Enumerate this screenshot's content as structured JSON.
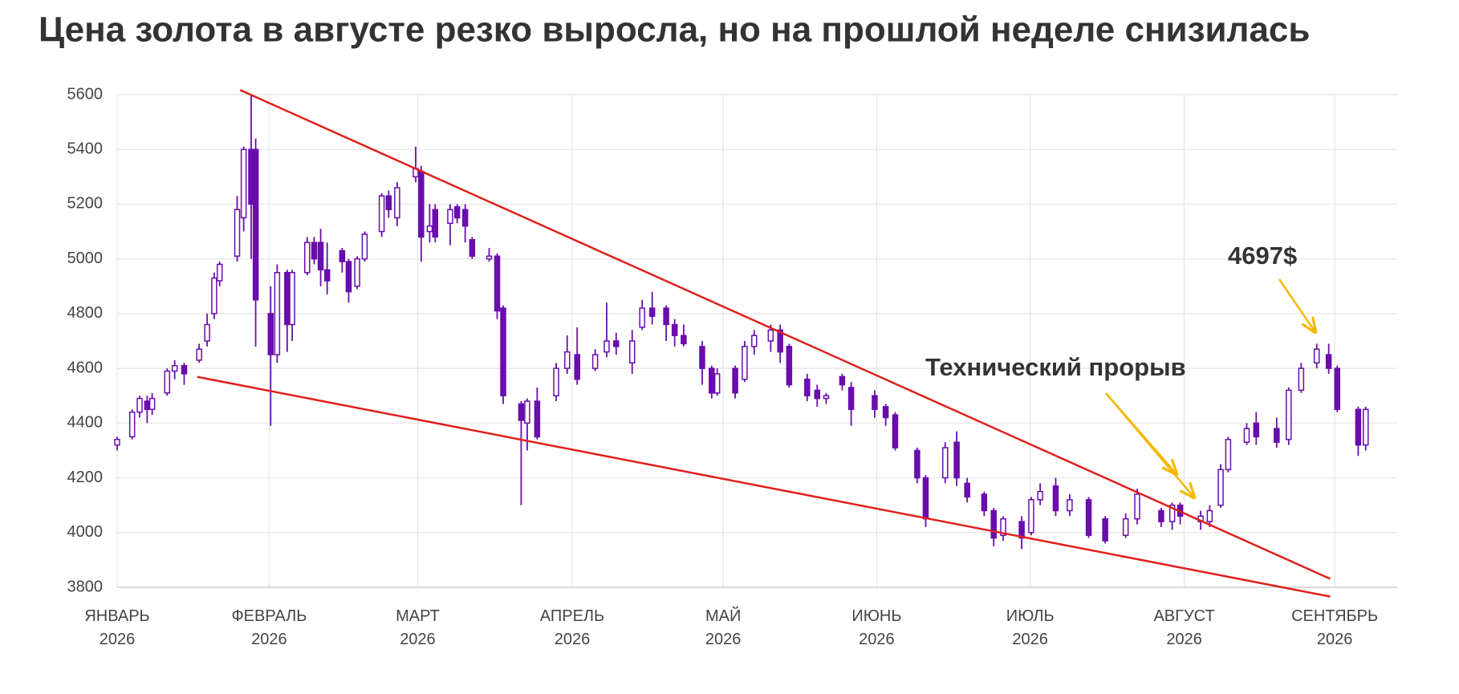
{
  "chart_data": {
    "type": "candlestick",
    "title": "Цена золота в августе резко выросла, но на прошлой неделе снизилась",
    "color": "#6a0dad",
    "grid": true,
    "xlim": [
      0,
      256
    ],
    "xticks": [
      {
        "value": 0,
        "label": "ЯНВАРЬ 2026"
      },
      {
        "value": 30.4,
        "label": "ФЕВРАЛЬ 2026"
      },
      {
        "value": 60.1,
        "label": "МАРТ 2026"
      },
      {
        "value": 91,
        "label": "АПРЕЛЬ 2026"
      },
      {
        "value": 121.2,
        "label": "МАЙ 2026"
      },
      {
        "value": 151.9,
        "label": "ИЮНЬ 2026"
      },
      {
        "value": 182.6,
        "label": "ИЮЛЬ 2026"
      },
      {
        "value": 213.4,
        "label": "АВГУСТ 2026"
      },
      {
        "value": 243.5,
        "label": "СЕНТЯБРЬ 2026"
      }
    ],
    "ylim": [
      3800,
      5600
    ],
    "yticks": [
      3800,
      4000,
      4200,
      4400,
      4600,
      4800,
      5000,
      5200,
      5400,
      5600
    ],
    "x": [
      0,
      3,
      4.5,
      6,
      7,
      10,
      11.5,
      13.4,
      16.4,
      18,
      19.4,
      20.5,
      24,
      25.3,
      26.8,
      27.7,
      30.7,
      32,
      34,
      35,
      38,
      39.4,
      40.7,
      42,
      45,
      46.3,
      48,
      49.5,
      52.9,
      54.3,
      56,
      59.7,
      60.8,
      62.5,
      63.6,
      66.6,
      68,
      69.6,
      71,
      74.4,
      76,
      77.2,
      80.8,
      82,
      84,
      87.8,
      90,
      92,
      95.6,
      97.9,
      99.8,
      103,
      105,
      107,
      109.8,
      111.5,
      113.3,
      117,
      118.9,
      120,
      123.6,
      125.5,
      127.4,
      130.7,
      132.6,
      134.4,
      138,
      140,
      141.8,
      145,
      146.8,
      151.5,
      153.7,
      155.6,
      160,
      161.7,
      165.6,
      167.9,
      170,
      173.4,
      175.3,
      177.2,
      180.9,
      182.8,
      184.6,
      187.7,
      190.5,
      194.3,
      197.6,
      201.7,
      204,
      208.8,
      211,
      212.6,
      216.7,
      218.5,
      220.7,
      222.2,
      225.9,
      227.8,
      231.9,
      234.3,
      236.8,
      239.9,
      242.3,
      244,
      248.2,
      249.7
    ],
    "open": [
      4320,
      4350,
      4440,
      4480,
      4450,
      4510,
      4590,
      4610,
      4630,
      4700,
      4800,
      4920,
      5010,
      5150,
      5400,
      5400,
      4800,
      4650,
      4950,
      4760,
      4950,
      5060,
      5060,
      4960,
      5030,
      4990,
      4900,
      5000,
      5100,
      5230,
      5150,
      5300,
      5320,
      5100,
      5180,
      5130,
      5190,
      5180,
      5070,
      5000,
      5010,
      4820,
      4470,
      4400,
      4480,
      4500,
      4600,
      4650,
      4600,
      4660,
      4700,
      4620,
      4750,
      4820,
      4820,
      4760,
      4720,
      4680,
      4600,
      4510,
      4600,
      4560,
      4680,
      4700,
      4740,
      4680,
      4560,
      4520,
      4490,
      4570,
      4530,
      4500,
      4460,
      4430,
      4300,
      4200,
      4200,
      4330,
      4180,
      4140,
      4080,
      3990,
      4040,
      4000,
      4120,
      4170,
      4080,
      4120,
      4050,
      3990,
      4050,
      4080,
      4040,
      4100,
      4040,
      4040,
      4100,
      4230,
      4330,
      4400,
      4380,
      4340,
      4520,
      4620,
      4650,
      4600,
      4450,
      4320
    ],
    "high": [
      4350,
      4450,
      4500,
      4500,
      4510,
      4600,
      4630,
      4620,
      4690,
      4800,
      4950,
      4990,
      5230,
      5410,
      5600,
      5440,
      4900,
      4980,
      4960,
      4960,
      5080,
      5080,
      5110,
      5060,
      5040,
      5000,
      5010,
      5100,
      5240,
      5250,
      5280,
      5410,
      5340,
      5200,
      5200,
      5200,
      5200,
      5200,
      5080,
      5040,
      5020,
      4830,
      4480,
      4490,
      4530,
      4620,
      4720,
      4750,
      4670,
      4840,
      4730,
      4740,
      4850,
      4880,
      4830,
      4780,
      4760,
      4700,
      4610,
      4600,
      4610,
      4700,
      4740,
      4760,
      4760,
      4690,
      4580,
      4540,
      4510,
      4580,
      4550,
      4520,
      4470,
      4440,
      4310,
      4210,
      4330,
      4370,
      4200,
      4150,
      4090,
      4060,
      4060,
      4130,
      4180,
      4200,
      4140,
      4130,
      4060,
      4070,
      4160,
      4090,
      4110,
      4110,
      4080,
      4100,
      4250,
      4350,
      4400,
      4440,
      4420,
      4530,
      4620,
      4690,
      4690,
      4610,
      4460,
      4460
    ],
    "low": [
      4300,
      4340,
      4420,
      4400,
      4430,
      4500,
      4560,
      4540,
      4620,
      4680,
      4780,
      4900,
      4990,
      5100,
      5000,
      4680,
      4390,
      4620,
      4660,
      4700,
      4940,
      4980,
      4900,
      4870,
      4950,
      4840,
      4890,
      4990,
      5080,
      5150,
      5120,
      5280,
      4990,
      5060,
      5060,
      5050,
      5130,
      5060,
      5000,
      4990,
      4780,
      4470,
      4100,
      4300,
      4340,
      4480,
      4580,
      4540,
      4590,
      4640,
      4650,
      4580,
      4740,
      4760,
      4700,
      4680,
      4680,
      4540,
      4490,
      4500,
      4490,
      4550,
      4650,
      4660,
      4620,
      4530,
      4480,
      4460,
      4470,
      4520,
      4390,
      4420,
      4390,
      4300,
      4180,
      4020,
      4180,
      4170,
      4110,
      4060,
      3950,
      3970,
      3940,
      3990,
      4100,
      4060,
      4060,
      3980,
      3960,
      3980,
      4030,
      4020,
      4010,
      4030,
      4010,
      4020,
      4090,
      4220,
      4320,
      4320,
      4310,
      4320,
      4510,
      4600,
      4580,
      4440,
      4280,
      4300
    ],
    "close": [
      4340,
      4440,
      4490,
      4450,
      4490,
      4590,
      4610,
      4580,
      4670,
      4760,
      4930,
      4980,
      5180,
      5400,
      5200,
      4850,
      4650,
      4950,
      4760,
      4950,
      5060,
      5000,
      4960,
      4920,
      4990,
      4880,
      5000,
      5090,
      5230,
      5180,
      5260,
      5330,
      5080,
      5120,
      5080,
      5180,
      5150,
      5120,
      5010,
      5010,
      4810,
      4500,
      4410,
      4480,
      4350,
      4600,
      4660,
      4560,
      4650,
      4700,
      4680,
      4700,
      4820,
      4790,
      4760,
      4720,
      4690,
      4600,
      4510,
      4580,
      4510,
      4680,
      4720,
      4740,
      4660,
      4540,
      4500,
      4490,
      4500,
      4540,
      4450,
      4450,
      4420,
      4310,
      4200,
      4050,
      4310,
      4200,
      4130,
      4080,
      3980,
      4050,
      3980,
      4120,
      4150,
      4080,
      4120,
      3990,
      3970,
      4050,
      4140,
      4040,
      4100,
      4060,
      4060,
      4080,
      4230,
      4340,
      4380,
      4350,
      4330,
      4520,
      4600,
      4670,
      4600,
      4450,
      4320,
      4450
    ],
    "trendlines": [
      {
        "x": [
          24.6,
          242.6
        ],
        "y": [
          5617,
          3831
        ],
        "color": "#e0201b"
      },
      {
        "x": [
          16,
          242.6
        ],
        "y": [
          4569,
          3766
        ],
        "color": "#e0201b"
      }
    ],
    "annotations": [
      {
        "text": "Технический прорыв"
      },
      {
        "text": "4697$"
      }
    ]
  }
}
